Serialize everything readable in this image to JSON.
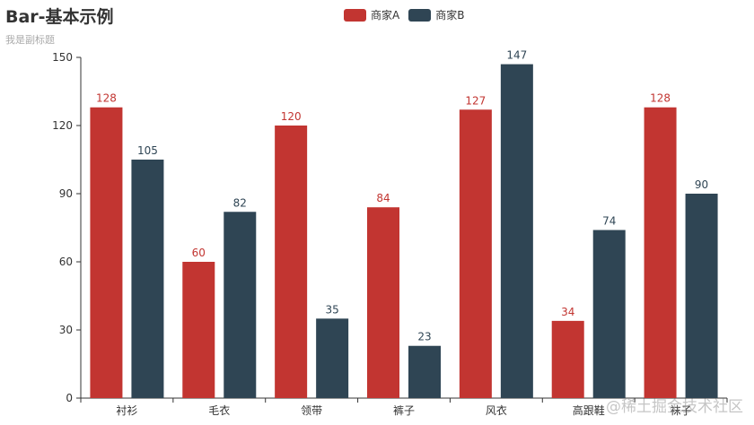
{
  "chart_data": {
    "type": "bar",
    "title": "Bar-基本示例",
    "subtitle": "我是副标题",
    "categories": [
      "衬衫",
      "毛衣",
      "领带",
      "裤子",
      "风衣",
      "高跟鞋",
      "袜子"
    ],
    "series": [
      {
        "name": "商家A",
        "color": "#c23531",
        "values": [
          128,
          60,
          120,
          84,
          127,
          34,
          128
        ]
      },
      {
        "name": "商家B",
        "color": "#2f4554",
        "values": [
          105,
          82,
          35,
          23,
          147,
          74,
          90
        ]
      }
    ],
    "ylim": [
      0,
      150
    ],
    "yticks": [
      0,
      30,
      60,
      90,
      120,
      150
    ],
    "legend_position": "top-center",
    "grid": false,
    "xlabel": "",
    "ylabel": ""
  },
  "watermark": "@稀土掘金技术社区"
}
